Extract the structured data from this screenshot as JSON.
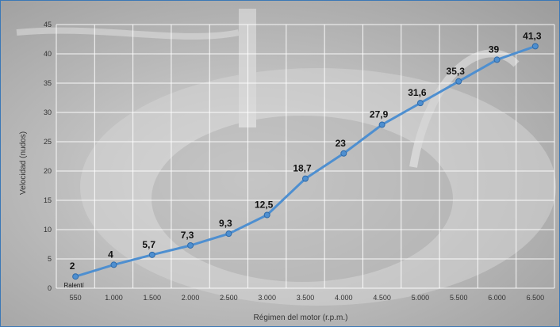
{
  "chart_data": {
    "type": "line",
    "xlabel": "Régimen del motor (r.p.m.)",
    "ylabel": "Velocidad (nudos)",
    "categories": [
      "550",
      "1.000",
      "1.500",
      "2.000",
      "2.500",
      "3.000",
      "3.500",
      "4.000",
      "4.500",
      "5.000",
      "5.500",
      "6.000",
      "6.500"
    ],
    "values": [
      2,
      4,
      5.7,
      7.3,
      9.3,
      12.5,
      18.7,
      23,
      27.9,
      31.6,
      35.3,
      39,
      41.3
    ],
    "data_labels": [
      "2",
      "4",
      "5,7",
      "7,3",
      "9,3",
      "12,5",
      "18,7",
      "23",
      "27,9",
      "31,6",
      "35,3",
      "39",
      "41,3"
    ],
    "annotations": [
      {
        "text": "Ralentí",
        "category": "550"
      }
    ],
    "ylim": [
      0,
      45
    ],
    "yticks": [
      0,
      5,
      10,
      15,
      20,
      25,
      30,
      35,
      40,
      45
    ],
    "grid": true,
    "line_color": "#4e8fd0",
    "marker_color": "#4e8fd0",
    "grid_color": "#ffffff"
  }
}
